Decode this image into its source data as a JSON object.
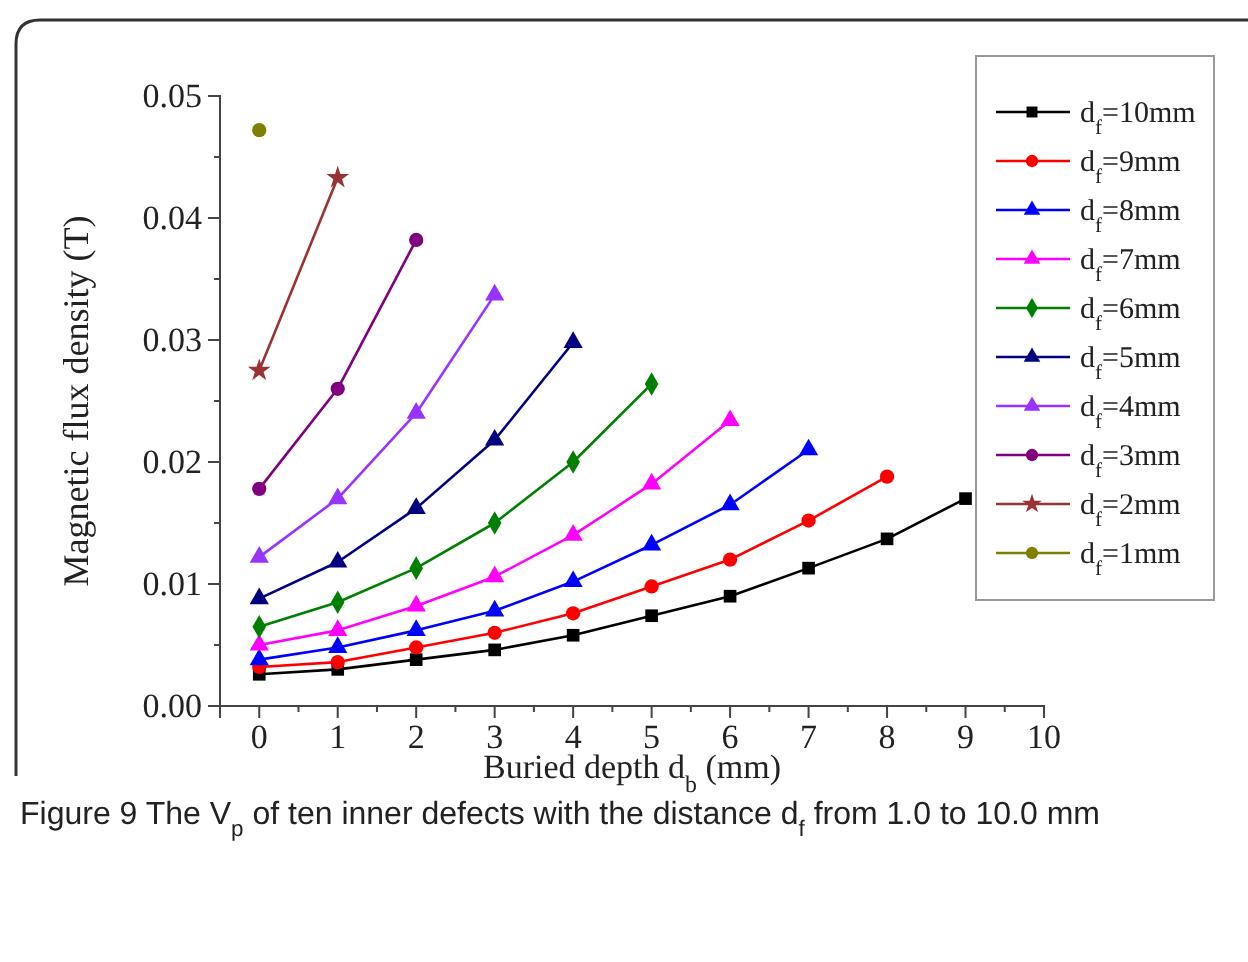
{
  "chart_data": {
    "type": "line",
    "xlabel": "Buried depth d$_{b}$ (mm)",
    "ylabel": "Magnetic flux density (T)",
    "annotations": [
      "Figure 9  The V$_{p}$ of ten inner defects with the distance d$_{f}$ from 1.0 to 10.0 mm"
    ],
    "xlim": [
      -0.5,
      10
    ],
    "xticks": [
      0,
      {
        "value": 0.5,
        "label": null
      },
      1,
      {
        "value": 1.5,
        "label": null
      },
      2,
      {
        "value": 2.5,
        "label": null
      },
      3,
      {
        "value": 3.5,
        "label": null
      },
      4,
      {
        "value": 4.5,
        "label": null
      },
      5,
      {
        "value": 5.5,
        "label": null
      },
      6,
      {
        "value": 6.5,
        "label": null
      },
      7,
      {
        "value": 7.5,
        "label": null
      },
      8,
      {
        "value": 8.5,
        "label": null
      },
      9,
      {
        "value": 9.5,
        "label": null
      },
      10
    ],
    "ylim": [
      0,
      0.05
    ],
    "yticks": [
      {
        "value": 0,
        "label": "0.00"
      },
      {
        "value": 0.005,
        "label": null
      },
      {
        "value": 0.01,
        "label": "0.01"
      },
      {
        "value": 0.015,
        "label": null
      },
      {
        "value": 0.02,
        "label": "0.02"
      },
      {
        "value": 0.025,
        "label": null
      },
      {
        "value": 0.03,
        "label": "0.03"
      },
      {
        "value": 0.035,
        "label": null
      },
      {
        "value": 0.04,
        "label": "0.04"
      },
      {
        "value": 0.045,
        "label": null
      },
      {
        "value": 0.05,
        "label": "0.05"
      }
    ],
    "grid": false,
    "legend": "right",
    "line_style": "solid",
    "series": [
      {
        "name": "d$_{f}$=10mm",
        "color": "#000000",
        "marker": "square",
        "x": [
          0,
          1,
          2,
          3,
          4,
          5,
          6,
          7,
          8,
          9
        ],
        "values": [
          0.0026,
          0.003,
          0.0038,
          0.0046,
          0.0058,
          0.0074,
          0.009,
          0.0113,
          0.0137,
          0.017
        ]
      },
      {
        "name": "d$_{f}$=9mm",
        "color": "#ff0000",
        "marker": "circle",
        "x": [
          0,
          1,
          2,
          3,
          4,
          5,
          6,
          7,
          8
        ],
        "values": [
          0.0032,
          0.0036,
          0.0048,
          0.006,
          0.0076,
          0.0098,
          0.012,
          0.0152,
          0.0188
        ]
      },
      {
        "name": "d$_{f}$=8mm",
        "color": "#0000ff",
        "marker": "triangle",
        "x": [
          0,
          1,
          2,
          3,
          4,
          5,
          6,
          7
        ],
        "values": [
          0.0038,
          0.0048,
          0.0062,
          0.0078,
          0.0102,
          0.0132,
          0.0165,
          0.021
        ]
      },
      {
        "name": "d$_{f}$=7mm",
        "color": "#ff00ff",
        "marker": "triangle",
        "x": [
          0,
          1,
          2,
          3,
          4,
          5,
          6
        ],
        "values": [
          0.005,
          0.0062,
          0.0082,
          0.0106,
          0.014,
          0.0182,
          0.0234
        ]
      },
      {
        "name": "d$_{f}$=6mm",
        "color": "#008000",
        "marker": "diamond",
        "x": [
          0,
          1,
          2,
          3,
          4,
          5
        ],
        "values": [
          0.0065,
          0.0085,
          0.0113,
          0.015,
          0.02,
          0.0264
        ]
      },
      {
        "name": "d$_{f}$=5mm",
        "color": "#000080",
        "marker": "triangle",
        "x": [
          0,
          1,
          2,
          3,
          4
        ],
        "values": [
          0.0088,
          0.0118,
          0.0162,
          0.0218,
          0.0298
        ]
      },
      {
        "name": "d$_{f}$=4mm",
        "color": "#9933ff",
        "marker": "triangle",
        "x": [
          0,
          1,
          2,
          3
        ],
        "values": [
          0.0122,
          0.017,
          0.024,
          0.0337
        ]
      },
      {
        "name": "d$_{f}$=3mm",
        "color": "#800080",
        "marker": "circle",
        "x": [
          0,
          1,
          2
        ],
        "values": [
          0.0178,
          0.026,
          0.0382
        ]
      },
      {
        "name": "d$_{f}$=2mm",
        "color": "#993333",
        "marker": "star",
        "x": [
          0,
          1
        ],
        "values": [
          0.0275,
          0.0433
        ]
      },
      {
        "name": "d$_{f}$=1mm",
        "color": "#808000",
        "marker": "circle",
        "x": [
          0
        ],
        "values": [
          0.0472
        ]
      }
    ]
  }
}
